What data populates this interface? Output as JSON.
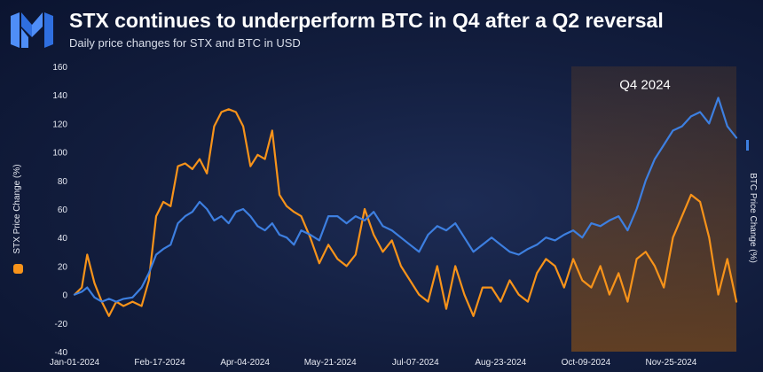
{
  "header": {
    "title": "STX continues to underperform BTC in Q4 after a Q2 reversal",
    "subtitle": "Daily price changes for STX and BTC in USD"
  },
  "logo": {
    "icon": "brand-logo-icon"
  },
  "colors": {
    "background": "#121d3d",
    "stx": "#f7931a",
    "btc": "#3d7fe0",
    "q4_shade": "#7a4a1c",
    "text": "#ffffff"
  },
  "chart_data": {
    "type": "line",
    "xlabel": "",
    "x_ticks": [
      "Jan-01-2024",
      "Feb-17-2024",
      "Apr-04-2024",
      "May-21-2024",
      "Jul-07-2024",
      "Aug-23-2024",
      "Oct-09-2024",
      "Nov-25-2024"
    ],
    "xlim": [
      "2024-01-01",
      "2024-12-31"
    ],
    "y_left": {
      "label": "STX Price Change (%)",
      "ylim": [
        -40,
        160
      ],
      "ticks": [
        -40,
        -20,
        0,
        20,
        40,
        60,
        80,
        100,
        120,
        140,
        160
      ]
    },
    "y_right": {
      "label": "BTC Price Change (%)"
    },
    "grid": false,
    "annotations": [
      {
        "text": "Q4 2024",
        "shaded_from": "2024-10-01",
        "shaded_to": "2024-12-31"
      }
    ],
    "series": [
      {
        "name": "STX Price Change (%)",
        "axis": "left",
        "color": "#f7931a",
        "x": [
          "2024-01-01",
          "2024-01-05",
          "2024-01-08",
          "2024-01-12",
          "2024-01-16",
          "2024-01-20",
          "2024-01-24",
          "2024-01-28",
          "2024-02-02",
          "2024-02-07",
          "2024-02-11",
          "2024-02-15",
          "2024-02-19",
          "2024-02-23",
          "2024-02-27",
          "2024-03-02",
          "2024-03-06",
          "2024-03-10",
          "2024-03-14",
          "2024-03-18",
          "2024-03-22",
          "2024-03-26",
          "2024-03-30",
          "2024-04-03",
          "2024-04-07",
          "2024-04-11",
          "2024-04-15",
          "2024-04-19",
          "2024-04-23",
          "2024-04-27",
          "2024-05-01",
          "2024-05-05",
          "2024-05-10",
          "2024-05-15",
          "2024-05-20",
          "2024-05-25",
          "2024-05-30",
          "2024-06-04",
          "2024-06-09",
          "2024-06-14",
          "2024-06-19",
          "2024-06-24",
          "2024-06-29",
          "2024-07-04",
          "2024-07-09",
          "2024-07-14",
          "2024-07-19",
          "2024-07-24",
          "2024-07-29",
          "2024-08-03",
          "2024-08-08",
          "2024-08-13",
          "2024-08-18",
          "2024-08-23",
          "2024-08-28",
          "2024-09-02",
          "2024-09-07",
          "2024-09-12",
          "2024-09-17",
          "2024-09-22",
          "2024-09-27",
          "2024-10-02",
          "2024-10-07",
          "2024-10-12",
          "2024-10-17",
          "2024-10-22",
          "2024-10-27",
          "2024-11-01",
          "2024-11-06",
          "2024-11-11",
          "2024-11-16",
          "2024-11-21",
          "2024-11-26",
          "2024-12-01",
          "2024-12-06",
          "2024-12-11",
          "2024-12-16",
          "2024-12-21",
          "2024-12-26",
          "2024-12-31"
        ],
        "y": [
          0,
          5,
          28,
          8,
          -5,
          -15,
          -5,
          -8,
          -5,
          -8,
          10,
          55,
          65,
          62,
          90,
          92,
          88,
          95,
          85,
          118,
          128,
          130,
          128,
          118,
          90,
          98,
          95,
          115,
          70,
          62,
          58,
          55,
          40,
          22,
          35,
          25,
          20,
          28,
          60,
          42,
          30,
          38,
          20,
          10,
          0,
          -5,
          20,
          -10,
          20,
          0,
          -15,
          5,
          5,
          -5,
          10,
          0,
          -5,
          15,
          25,
          20,
          5,
          25,
          10,
          5,
          20,
          0,
          15,
          -5,
          25,
          30,
          20,
          5,
          40,
          55,
          70,
          65,
          40,
          0,
          25,
          -5
        ]
      },
      {
        "name": "BTC Price Change (%)",
        "axis": "right",
        "color": "#3d7fe0",
        "x": [
          "2024-01-01",
          "2024-01-05",
          "2024-01-08",
          "2024-01-12",
          "2024-01-16",
          "2024-01-20",
          "2024-01-24",
          "2024-01-28",
          "2024-02-02",
          "2024-02-07",
          "2024-02-11",
          "2024-02-15",
          "2024-02-19",
          "2024-02-23",
          "2024-02-27",
          "2024-03-02",
          "2024-03-06",
          "2024-03-10",
          "2024-03-14",
          "2024-03-18",
          "2024-03-22",
          "2024-03-26",
          "2024-03-30",
          "2024-04-03",
          "2024-04-07",
          "2024-04-11",
          "2024-04-15",
          "2024-04-19",
          "2024-04-23",
          "2024-04-27",
          "2024-05-01",
          "2024-05-05",
          "2024-05-10",
          "2024-05-15",
          "2024-05-20",
          "2024-05-25",
          "2024-05-30",
          "2024-06-04",
          "2024-06-09",
          "2024-06-14",
          "2024-06-19",
          "2024-06-24",
          "2024-06-29",
          "2024-07-04",
          "2024-07-09",
          "2024-07-14",
          "2024-07-19",
          "2024-07-24",
          "2024-07-29",
          "2024-08-03",
          "2024-08-08",
          "2024-08-13",
          "2024-08-18",
          "2024-08-23",
          "2024-08-28",
          "2024-09-02",
          "2024-09-07",
          "2024-09-12",
          "2024-09-17",
          "2024-09-22",
          "2024-09-27",
          "2024-10-02",
          "2024-10-07",
          "2024-10-12",
          "2024-10-17",
          "2024-10-22",
          "2024-10-27",
          "2024-11-01",
          "2024-11-06",
          "2024-11-11",
          "2024-11-16",
          "2024-11-21",
          "2024-11-26",
          "2024-12-01",
          "2024-12-06",
          "2024-12-11",
          "2024-12-16",
          "2024-12-21",
          "2024-12-26",
          "2024-12-31"
        ],
        "y": [
          0,
          2,
          5,
          -2,
          -5,
          -3,
          -5,
          -3,
          -2,
          5,
          15,
          28,
          32,
          35,
          50,
          55,
          58,
          65,
          60,
          52,
          55,
          50,
          58,
          60,
          55,
          48,
          45,
          50,
          42,
          40,
          35,
          45,
          42,
          38,
          55,
          55,
          50,
          55,
          52,
          58,
          48,
          45,
          40,
          35,
          30,
          42,
          48,
          45,
          50,
          40,
          30,
          35,
          40,
          35,
          30,
          28,
          32,
          35,
          40,
          38,
          42,
          45,
          40,
          50,
          48,
          52,
          55,
          45,
          60,
          80,
          95,
          105,
          115,
          118,
          125,
          128,
          120,
          138,
          118,
          110
        ]
      }
    ]
  }
}
